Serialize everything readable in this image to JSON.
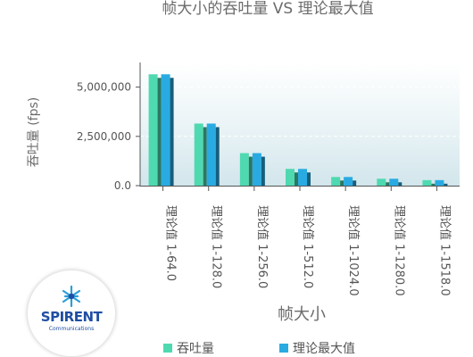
{
  "chart_data": {
    "type": "bar",
    "title": "帧大小的吞吐量 VS 理论最大值",
    "xlabel": "帧大小",
    "ylabel": "吞吐量 (fps)",
    "ylim": [
      0,
      6250000
    ],
    "yticks": [
      {
        "value": 0,
        "label": "0.0"
      },
      {
        "value": 2500000,
        "label": "2,500,000"
      },
      {
        "value": 5000000,
        "label": "5,000,000"
      }
    ],
    "categories": [
      {
        "prefix": "理论值",
        "size": "1-64.0"
      },
      {
        "prefix": "理论值",
        "size": "1-128.0"
      },
      {
        "prefix": "理论值",
        "size": "1-256.0"
      },
      {
        "prefix": "理论值",
        "size": "1-512.0"
      },
      {
        "prefix": "理论值",
        "size": "1-1024.0"
      },
      {
        "prefix": "理论值",
        "size": "1-1280.0"
      },
      {
        "prefix": "理论值",
        "size": "1-1518.0"
      }
    ],
    "series": [
      {
        "name": "吞吐量",
        "color": "#4fd9b0",
        "values": [
          5650000,
          3150000,
          1650000,
          850000,
          440000,
          350000,
          280000
        ]
      },
      {
        "name": "理论最大值",
        "color": "#29abe2",
        "values": [
          5650000,
          3150000,
          1650000,
          850000,
          440000,
          350000,
          280000
        ]
      }
    ],
    "grid": true,
    "legend": "bottom"
  },
  "logo": {
    "word": "SPIRENT",
    "sub": "Communications"
  }
}
